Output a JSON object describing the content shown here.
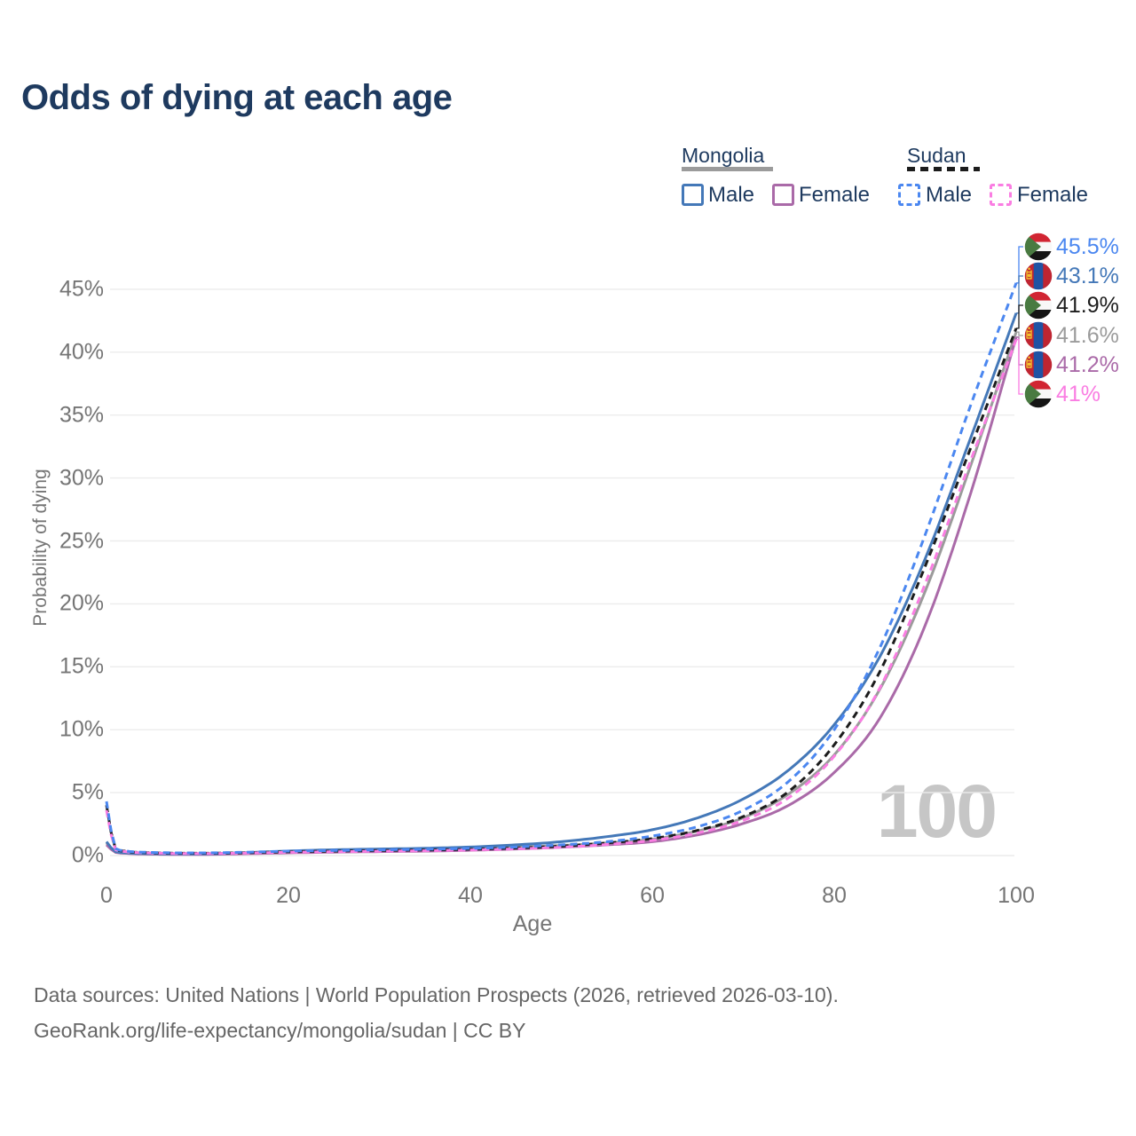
{
  "header": {
    "title": "Odds of dying at each age"
  },
  "legend": {
    "groups": [
      {
        "country": "Mongolia",
        "line_style": "solid",
        "line_color": "#9b9b9b",
        "items": [
          {
            "label": "Male",
            "color": "#4478b8",
            "dashed": false
          },
          {
            "label": "Female",
            "color": "#aa6aa8",
            "dashed": false
          }
        ]
      },
      {
        "country": "Sudan",
        "line_style": "dashed",
        "line_color": "#1c1c1c",
        "items": [
          {
            "label": "Male",
            "color": "#4b87f0",
            "dashed": true
          },
          {
            "label": "Female",
            "color": "#fa7de2",
            "dashed": true
          }
        ]
      }
    ]
  },
  "watermark": "100",
  "footer": {
    "line1": "Data sources: United Nations | World Population Prospects (2026, retrieved 2026-03-10).",
    "line2": "GeoRank.org/life-expectancy/mongolia/sudan | CC BY"
  },
  "colors": {
    "title_text": "#1e3a5f",
    "axis_text": "#757575",
    "grid": "#ececec",
    "watermark": "#c6c6c6",
    "footer_text": "#666666"
  },
  "flag_palette": {
    "sudan": {
      "red": "#d12532",
      "white": "#f8f8f8",
      "black": "#151515",
      "green": "#497a41"
    },
    "mongolia": {
      "red": "#bf2532",
      "blue": "#2053a4",
      "yellow": "#f2c32c"
    }
  },
  "chart_data": {
    "type": "line",
    "title": "Odds of dying at each age",
    "xlabel": "Age",
    "ylabel": "Probability of dying",
    "x_tick_labels": [
      "0",
      "20",
      "40",
      "60",
      "80",
      "100"
    ],
    "x_tick_values": [
      0,
      20,
      40,
      60,
      80,
      100
    ],
    "y_tick_labels": [
      "0%",
      "5%",
      "10%",
      "15%",
      "20%",
      "25%",
      "30%",
      "35%",
      "40%",
      "45%"
    ],
    "y_tick_values": [
      0,
      5,
      10,
      15,
      20,
      25,
      30,
      35,
      40,
      45
    ],
    "xlim": [
      0,
      100
    ],
    "ylim_percent": [
      0,
      47
    ],
    "grid": "horizontal",
    "ages": [
      0,
      1,
      2,
      5,
      10,
      15,
      20,
      25,
      30,
      35,
      40,
      45,
      50,
      55,
      60,
      65,
      70,
      75,
      80,
      85,
      90,
      95,
      100
    ],
    "series": [
      {
        "id": "sudan-male",
        "name": "Sudan Male",
        "country": "Sudan",
        "sex": "Male",
        "flag": "sudan",
        "color": "#4b87f0",
        "dashed": true,
        "end_label": "45.5%",
        "end_value": 45.5,
        "values": [
          4.3,
          0.55,
          0.38,
          0.25,
          0.21,
          0.26,
          0.35,
          0.4,
          0.45,
          0.5,
          0.57,
          0.68,
          0.85,
          1.1,
          1.55,
          2.3,
          3.6,
          5.9,
          10.0,
          16.5,
          25.5,
          35.8,
          45.5
        ]
      },
      {
        "id": "mongolia-male",
        "name": "Mongolia Male",
        "country": "Mongolia",
        "sex": "Male",
        "flag": "mongolia",
        "color": "#4478b8",
        "dashed": false,
        "end_label": "43.1%",
        "end_value": 43.1,
        "values": [
          1.1,
          0.3,
          0.22,
          0.15,
          0.13,
          0.22,
          0.36,
          0.46,
          0.52,
          0.58,
          0.68,
          0.85,
          1.1,
          1.5,
          2.05,
          3.0,
          4.5,
          6.8,
          10.4,
          15.8,
          23.6,
          33.2,
          43.1
        ]
      },
      {
        "id": "sudan-both",
        "name": "Sudan Both sexes",
        "country": "Sudan",
        "sex": "Both sexes",
        "flag": "sudan",
        "color": "#1c1c1c",
        "dashed": true,
        "end_label": "41.9%",
        "end_value": 41.9,
        "values": [
          4.0,
          0.5,
          0.35,
          0.22,
          0.18,
          0.22,
          0.3,
          0.35,
          0.4,
          0.44,
          0.5,
          0.6,
          0.75,
          1.0,
          1.35,
          2.0,
          3.1,
          5.1,
          8.8,
          14.6,
          23.0,
          32.4,
          41.9
        ]
      },
      {
        "id": "mongolia-both",
        "name": "Mongolia Both sexes",
        "country": "Mongolia",
        "sex": "Both sexes",
        "flag": "mongolia",
        "color": "#9b9b9b",
        "dashed": false,
        "end_label": "41.6%",
        "end_value": 41.6,
        "values": [
          1.0,
          0.27,
          0.2,
          0.13,
          0.11,
          0.18,
          0.3,
          0.38,
          0.43,
          0.47,
          0.55,
          0.67,
          0.8,
          1.0,
          1.3,
          1.95,
          3.0,
          4.9,
          8.0,
          13.2,
          21.0,
          31.0,
          41.6
        ]
      },
      {
        "id": "mongolia-female",
        "name": "Mongolia Female",
        "country": "Mongolia",
        "sex": "Female",
        "flag": "mongolia",
        "color": "#aa6aa8",
        "dashed": false,
        "end_label": "41.2%",
        "end_value": 41.2,
        "values": [
          0.85,
          0.25,
          0.18,
          0.11,
          0.09,
          0.14,
          0.21,
          0.27,
          0.31,
          0.35,
          0.42,
          0.52,
          0.66,
          0.85,
          1.1,
          1.65,
          2.55,
          4.0,
          6.6,
          10.9,
          18.3,
          28.8,
          41.2
        ]
      },
      {
        "id": "sudan-female",
        "name": "Sudan Female",
        "country": "Sudan",
        "sex": "Female",
        "flag": "sudan",
        "color": "#fa7de2",
        "dashed": true,
        "end_label": "41%",
        "end_value": 41.0,
        "values": [
          3.6,
          0.45,
          0.32,
          0.2,
          0.16,
          0.19,
          0.26,
          0.3,
          0.34,
          0.38,
          0.44,
          0.53,
          0.66,
          0.88,
          1.2,
          1.8,
          2.8,
          4.6,
          7.9,
          13.3,
          21.6,
          31.4,
          41.0
        ]
      }
    ]
  }
}
